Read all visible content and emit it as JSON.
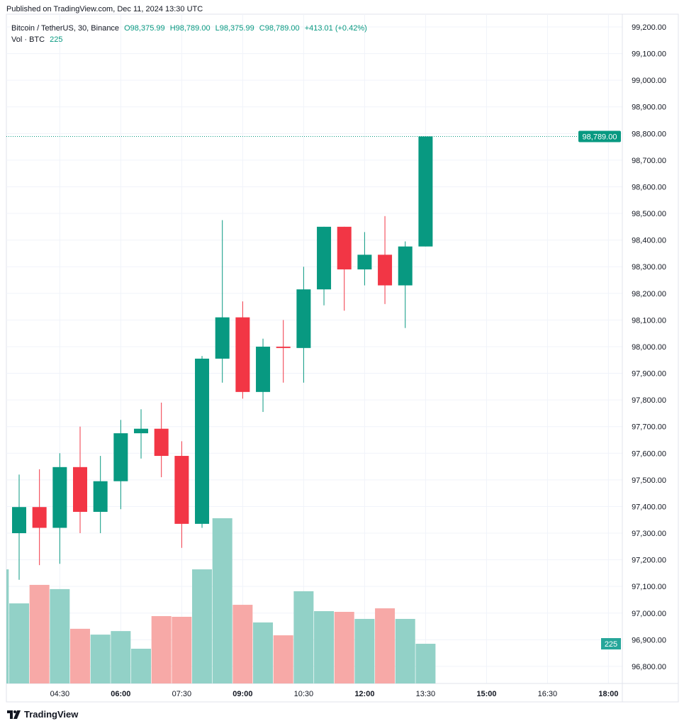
{
  "header": {
    "published": "Published on TradingView.com, Dec 11, 2024 13:30 UTC"
  },
  "legend": {
    "symbol": "Bitcoin / TetherUS, 30, Binance",
    "open": "O98,375.99",
    "high": "H98,789.00",
    "low": "L98,375.99",
    "close": "C98,789.00",
    "change": "+413.01 (+0.42%)",
    "vol_label": "Vol · BTC",
    "vol_value": "225"
  },
  "footer": {
    "logo": "TradingView"
  },
  "colors": {
    "up": "#089981",
    "down": "#F23645",
    "up_vol": "#92d1c7",
    "down_vol": "#f7a9a7"
  },
  "chart_data": {
    "type": "candlestick",
    "title": "Bitcoin / TetherUS, 30, Binance",
    "ylim": [
      96750,
      99250
    ],
    "y_ticks": [
      "99,200.00",
      "99,100.00",
      "99,000.00",
      "98,900.00",
      "98,800.00",
      "98,700.00",
      "98,600.00",
      "98,500.00",
      "98,400.00",
      "98,300.00",
      "98,200.00",
      "98,100.00",
      "98,000.00",
      "97,900.00",
      "97,800.00",
      "97,700.00",
      "97,600.00",
      "97,500.00",
      "97,400.00",
      "97,300.00",
      "97,200.00",
      "97,100.00",
      "97,000.00",
      "96,900.00",
      "96,800.00"
    ],
    "x_ticks": [
      "04:30",
      "06:00",
      "07:30",
      "09:00",
      "10:30",
      "12:00",
      "13:30",
      "15:00",
      "16:30",
      "18:00"
    ],
    "x_tick_bold": [
      false,
      true,
      false,
      true,
      false,
      true,
      false,
      true,
      false,
      true
    ],
    "last_price_label": "98,789.00",
    "last_price": 98789,
    "last_volume_label": "225",
    "candles": [
      {
        "t": "03:30",
        "o": 97300,
        "h": 97520,
        "l": 97125,
        "c": 97398
      },
      {
        "t": "04:00",
        "o": 97398,
        "h": 97540,
        "l": 97180,
        "c": 97320
      },
      {
        "t": "04:30",
        "o": 97320,
        "h": 97600,
        "l": 97185,
        "c": 97548
      },
      {
        "t": "05:00",
        "o": 97548,
        "h": 97700,
        "l": 97300,
        "c": 97380
      },
      {
        "t": "05:30",
        "o": 97380,
        "h": 97590,
        "l": 97300,
        "c": 97495
      },
      {
        "t": "06:00",
        "o": 97495,
        "h": 97725,
        "l": 97390,
        "c": 97675
      },
      {
        "t": "06:30",
        "o": 97675,
        "h": 97765,
        "l": 97580,
        "c": 97692
      },
      {
        "t": "07:00",
        "o": 97692,
        "h": 97790,
        "l": 97510,
        "c": 97590
      },
      {
        "t": "07:30",
        "o": 97590,
        "h": 97645,
        "l": 97245,
        "c": 97335
      },
      {
        "t": "08:00",
        "o": 97335,
        "h": 97965,
        "l": 97320,
        "c": 97955
      },
      {
        "t": "08:30",
        "o": 97955,
        "h": 98475,
        "l": 97865,
        "c": 98110
      },
      {
        "t": "09:00",
        "o": 98110,
        "h": 98170,
        "l": 97805,
        "c": 97830
      },
      {
        "t": "09:30",
        "o": 97830,
        "h": 98030,
        "l": 97755,
        "c": 98000
      },
      {
        "t": "10:00",
        "o": 98000,
        "h": 98100,
        "l": 97865,
        "c": 97995
      },
      {
        "t": "10:30",
        "o": 97995,
        "h": 98300,
        "l": 97865,
        "c": 98215
      },
      {
        "t": "11:00",
        "o": 98215,
        "h": 98450,
        "l": 98155,
        "c": 98450
      },
      {
        "t": "11:30",
        "o": 98450,
        "h": 98450,
        "l": 98135,
        "c": 98290
      },
      {
        "t": "12:00",
        "o": 98290,
        "h": 98430,
        "l": 98230,
        "c": 98345
      },
      {
        "t": "12:30",
        "o": 98345,
        "h": 98490,
        "l": 98160,
        "c": 98230
      },
      {
        "t": "13:00",
        "o": 98230,
        "h": 98395,
        "l": 98070,
        "c": 98376
      },
      {
        "t": "13:30",
        "o": 98376,
        "h": 98789,
        "l": 98376,
        "c": 98789
      }
    ],
    "volume": [
      {
        "t": "03:00",
        "v": 647,
        "up": true
      },
      {
        "t": "03:30",
        "v": 454,
        "up": true
      },
      {
        "t": "04:00",
        "v": 559,
        "up": false
      },
      {
        "t": "04:30",
        "v": 535,
        "up": true
      },
      {
        "t": "05:00",
        "v": 310,
        "up": false
      },
      {
        "t": "05:30",
        "v": 277,
        "up": true
      },
      {
        "t": "06:00",
        "v": 297,
        "up": true
      },
      {
        "t": "06:30",
        "v": 197,
        "up": true
      },
      {
        "t": "07:00",
        "v": 382,
        "up": false
      },
      {
        "t": "07:30",
        "v": 378,
        "up": false
      },
      {
        "t": "08:00",
        "v": 647,
        "up": true
      },
      {
        "t": "08:30",
        "v": 937,
        "up": true
      },
      {
        "t": "09:00",
        "v": 446,
        "up": false
      },
      {
        "t": "09:30",
        "v": 346,
        "up": true
      },
      {
        "t": "10:00",
        "v": 273,
        "up": false
      },
      {
        "t": "10:30",
        "v": 523,
        "up": true
      },
      {
        "t": "11:00",
        "v": 410,
        "up": true
      },
      {
        "t": "11:30",
        "v": 406,
        "up": false
      },
      {
        "t": "12:00",
        "v": 366,
        "up": true
      },
      {
        "t": "12:30",
        "v": 426,
        "up": false
      },
      {
        "t": "13:00",
        "v": 366,
        "up": true
      },
      {
        "t": "13:30",
        "v": 225,
        "up": true
      }
    ]
  }
}
